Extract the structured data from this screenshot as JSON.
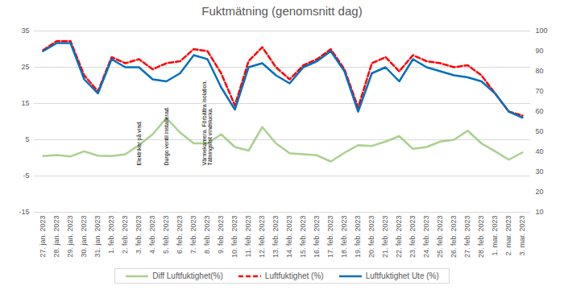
{
  "chart_data": {
    "type": "line",
    "title": "Fuktmätning (genomsnitt dag)",
    "categories": [
      "27. jan. 2023",
      "28. jan. 2023",
      "29. jan. 2023",
      "30. jan. 2023",
      "31. jan. 2023",
      "1. feb. 2023",
      "2. feb. 2023",
      "3. feb. 2023",
      "4. feb. 2023",
      "5. feb. 2023",
      "6. feb. 2023",
      "7. feb. 2023",
      "8. feb. 2023",
      "9. feb. 2023",
      "10. feb. 2023",
      "11. feb. 2023",
      "12. feb. 2023",
      "13. feb. 2023",
      "14. feb. 2023",
      "15. feb. 2023",
      "16. feb. 2023",
      "17. feb. 2023",
      "18. feb. 2023",
      "19. feb. 2023",
      "20. feb. 2023",
      "21. feb. 2023",
      "22. feb. 2023",
      "23. feb. 2023",
      "24. feb. 2023",
      "25. feb. 2023",
      "26. feb. 2023",
      "27. feb. 2023",
      "28. feb. 2023",
      "1. mar. 2023",
      "2. mar. 2023",
      "3. mar. 2023"
    ],
    "series": [
      {
        "name": "Diff Luftfuktighet(%)",
        "color": "#a9d18e",
        "line_style": "solid",
        "values": [
          0.5,
          0.8,
          0.4,
          1.8,
          0.6,
          0.5,
          1,
          3.5,
          6.5,
          11,
          7,
          4,
          4,
          6.5,
          3,
          2,
          8.5,
          4,
          1.3,
          1,
          0.7,
          -1,
          1.4,
          3.5,
          3.3,
          4.5,
          6,
          2.5,
          3,
          4.5,
          5,
          7.5,
          4,
          1.8,
          -0.5,
          1.5
        ]
      },
      {
        "name": "Luftfuktighet (%)",
        "color": "#ff0000",
        "line_style": "dashed",
        "axis": "y2",
        "values": [
          90.5,
          95,
          95,
          78,
          70,
          87,
          84,
          86,
          81,
          84,
          85,
          91,
          90,
          79,
          63,
          85,
          92,
          82,
          76,
          83,
          86,
          91,
          81,
          62,
          84,
          87,
          80,
          88,
          85,
          84,
          82,
          83,
          78,
          69,
          60,
          58
        ]
      },
      {
        "name": "Luftfuktighet Ute (%)",
        "color": "#0070c0",
        "line_style": "solid",
        "axis": "y2",
        "values": [
          90,
          94,
          94,
          76,
          69,
          86,
          82,
          82,
          76,
          75,
          79,
          88,
          86,
          72,
          61,
          82,
          84,
          78,
          74,
          82,
          85,
          90,
          80,
          60,
          79,
          82,
          75,
          86,
          82,
          80,
          78,
          77,
          75,
          69,
          60,
          57
        ]
      }
    ],
    "annotations": [
      {
        "x": "3. feb. 2023",
        "text": "Elektriker på vind."
      },
      {
        "x": "5. feb. 2023",
        "text": "Durgo ventil installerad."
      },
      {
        "x": "8. feb. 2023",
        "text": "Värmekamera. Förbättra isolation.\nTätningslist vindslucka."
      }
    ],
    "ylim": [
      -15,
      35
    ],
    "yticks": [
      -15,
      -5,
      5,
      15,
      25,
      35
    ],
    "y2lim": [
      10,
      100
    ],
    "y2ticks": [
      10,
      20,
      30,
      40,
      50,
      60,
      70,
      80,
      90,
      100
    ],
    "grid": true,
    "legend": "bottom"
  }
}
